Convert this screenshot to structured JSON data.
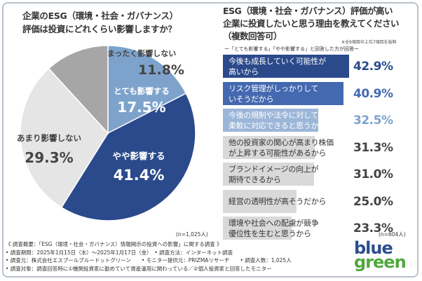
{
  "left": {
    "title_line1": "企業のESG（環境・社会・ガバナンス）",
    "title_line2": "評価は投資にどれくらい影響しますか？",
    "n_label": "(n=1,025人)"
  },
  "right": {
    "title_line1": "ESG（環境・社会・ガバナンス）評価が高い",
    "title_line2": "企業に投資したいと思う理由を教えてください",
    "title_line3": "（複数回答可）",
    "note": "※全9項目中上位7項目を抜粋",
    "legend": "ー「とても影響する」「やや影響する」と回答した方が回答ー",
    "n_label": "(n=604人)"
  },
  "chart_data": [
    {
      "type": "pie",
      "title": "企業のESG（環境・社会・ガバナンス）評価は投資にどれくらい影響しますか？",
      "slices": [
        {
          "label": "とても影響する",
          "value": 17.5,
          "display": "17.5%",
          "color": "#7da3cc",
          "text_color": "#ffffff"
        },
        {
          "label": "やや影響する",
          "value": 41.4,
          "display": "41.4%",
          "color": "#2b4a8c",
          "text_color": "#ffffff"
        },
        {
          "label": "あまり影響しない",
          "value": 29.3,
          "display": "29.3%",
          "color": "#e5e5e5",
          "text_color": "#444444"
        },
        {
          "label": "まったく影響しない",
          "value": 11.8,
          "display": "11.8%",
          "color": "#a6a6a6",
          "text_color": "#444444"
        }
      ]
    },
    {
      "type": "bar",
      "orientation": "horizontal",
      "title": "ESG（環境・社会・ガバナンス）評価が高い企業に投資したいと思う理由を教えてください（複数回答可）",
      "xlim": [
        0,
        42.9
      ],
      "items": [
        {
          "label_line1": "今後も成長していく可能性が",
          "label_line2": "高いから",
          "value": 42.9,
          "display": "42.9%",
          "color": "#2b4a8c",
          "label_color": "#ffffff",
          "value_color": "#2b4a8c"
        },
        {
          "label_line1": "リスク管理がしっかりして",
          "label_line2": "いそうだから",
          "value": 40.9,
          "display": "40.9%",
          "color": "#4469b0",
          "label_color": "#ffffff",
          "value_color": "#4469b0"
        },
        {
          "label_line1": "今後の規制や法令に対しても",
          "label_line2": "柔軟に対応できると思うから",
          "value": 32.5,
          "display": "32.5%",
          "color": "#9bb6d8",
          "label_color": "#ffffff",
          "value_color": "#7da3cc"
        },
        {
          "label_line1": "他の投資家の関心が高まり株価",
          "label_line2": "が上昇する可能性があるから",
          "value": 31.3,
          "display": "31.3%",
          "color": "#d9d9d9",
          "label_color": "#333333",
          "value_color": "#444444"
        },
        {
          "label_line1": "ブランドイメージの向上が",
          "label_line2": "期待できるから",
          "value": 31.0,
          "display": "31.0%",
          "color": "#d9d9d9",
          "label_color": "#333333",
          "value_color": "#444444"
        },
        {
          "label_line1": "経営の透明性が高そうだから",
          "label_line2": "",
          "value": 25.0,
          "display": "25.0%",
          "color": "#d9d9d9",
          "label_color": "#333333",
          "value_color": "#444444"
        },
        {
          "label_line1": "環境や社会への配慮が競争",
          "label_line2": "優位性を生むと思うから",
          "value": 23.3,
          "display": "23.3%",
          "color": "#d9d9d9",
          "label_color": "#333333",
          "value_color": "#444444"
        }
      ]
    }
  ],
  "footer": {
    "line1": "《 調査概要：「ESG（環境・社会・ガバナンス）情報開示の投資への影響」に関する調査 》",
    "line2": "• 調査期間：2025年1月15日（水）～2025年1月17日（金）　• 調査方法：インターネット調査",
    "line3": "• 調査元：株式会社エスプールブルードットグリーン　　• モニター提供元：PRIZMAリサーチ　　• 調査人数：1,025人",
    "line4": "• 調査対象：調査回答時に①機関投資家に勤めていて資産運用に関わっている／②個人投資家と回答したモニター"
  },
  "logo": {
    "line1": "blue",
    "line2": "green"
  }
}
